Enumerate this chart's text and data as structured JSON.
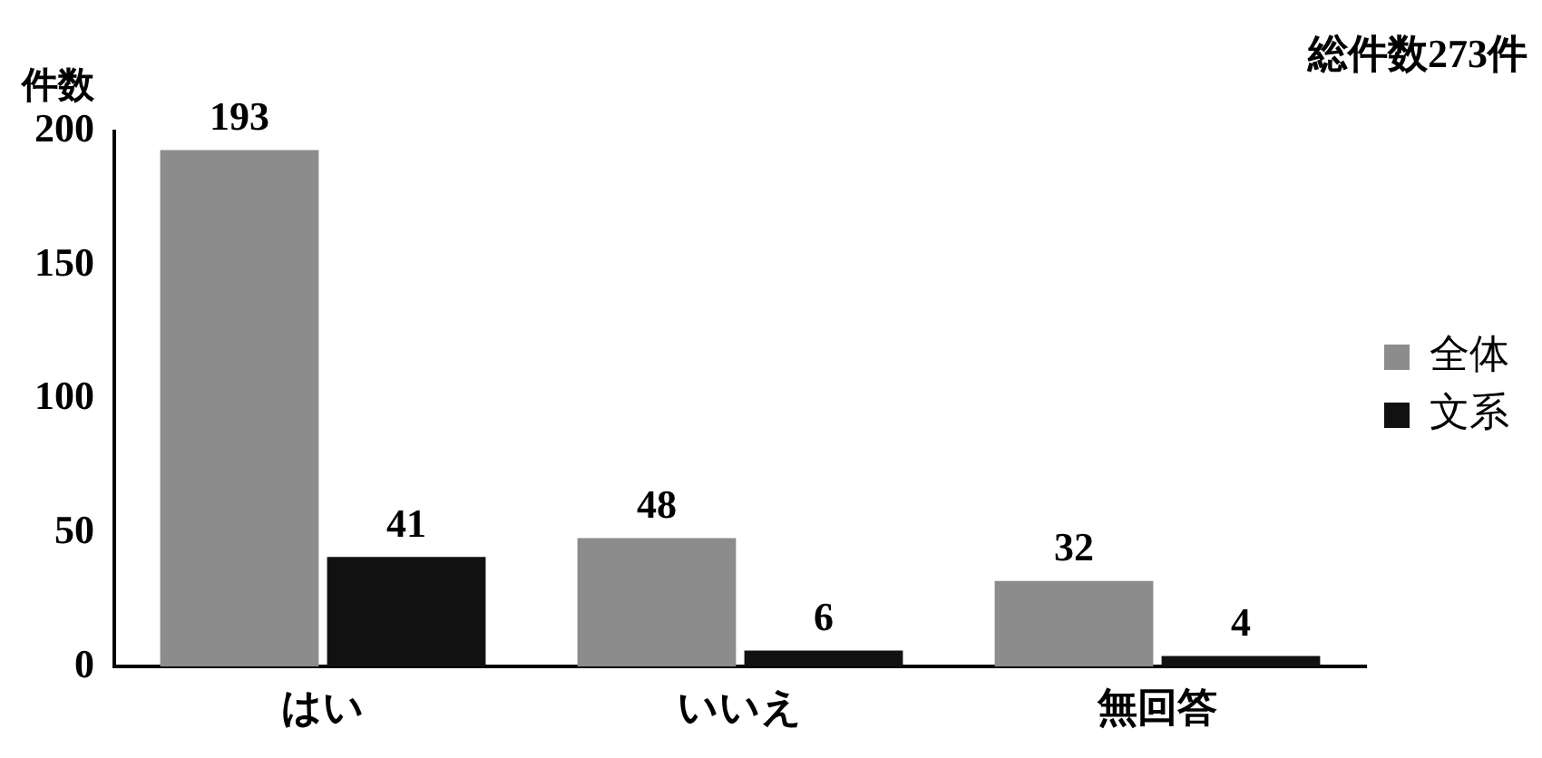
{
  "chart_data": {
    "type": "bar",
    "title": "総件数273件",
    "ylabel": "件数",
    "categories": [
      "はい",
      "いいえ",
      "無回答"
    ],
    "series": [
      {
        "name": "全体",
        "color": "#8c8c8c",
        "values": [
          193,
          48,
          32
        ]
      },
      {
        "name": "文系",
        "color": "#111111",
        "values": [
          41,
          6,
          4
        ]
      }
    ],
    "ylim": [
      0,
      200
    ],
    "yticks": [
      0,
      50,
      100,
      150,
      200
    ],
    "grid": false,
    "legend": "right",
    "data_labels": true
  }
}
